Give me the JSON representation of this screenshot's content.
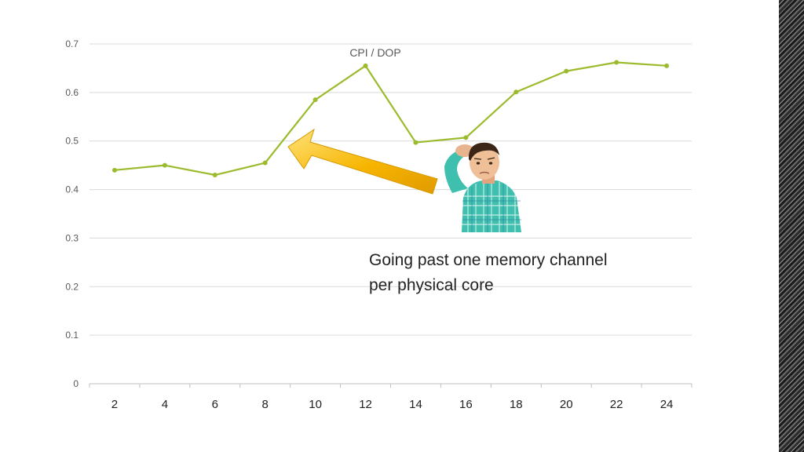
{
  "chart_data": {
    "type": "line",
    "title": "CPI / DOP",
    "xlabel": "",
    "ylabel": "",
    "x": [
      2,
      4,
      6,
      8,
      10,
      12,
      14,
      16,
      18,
      20,
      22,
      24
    ],
    "series": [
      {
        "color": "#9bbb2d",
        "values": [
          0.44,
          0.45,
          0.43,
          0.455,
          0.585,
          0.655,
          0.497,
          0.507,
          0.601,
          0.644,
          0.662,
          0.655
        ]
      }
    ],
    "ylim": [
      0,
      0.7
    ],
    "yticks": [
      "0",
      "0.1",
      "0.2",
      "0.3",
      "0.4",
      "0.5",
      "0.6",
      "0.7"
    ],
    "xticks": [
      "2",
      "4",
      "6",
      "8",
      "10",
      "12",
      "14",
      "16",
      "18",
      "20",
      "22",
      "24"
    ],
    "grid": true,
    "legend": "none"
  },
  "annotation": {
    "line1": "Going past one memory channel",
    "line2": "per physical core"
  },
  "icons": {
    "arrow": "orange-arrow-icon",
    "person": "confused-boy-image"
  },
  "colors": {
    "line": "#9bbb2d",
    "arrow": "#f5b400",
    "grid": "#d9d9d9"
  }
}
